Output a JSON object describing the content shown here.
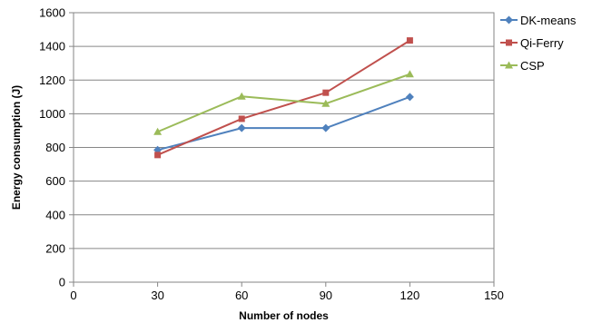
{
  "chart_data": {
    "type": "line",
    "xlabel": "Number of nodes",
    "ylabel": "Energy consumption  (J)",
    "xlim": [
      0,
      150
    ],
    "ylim": [
      0,
      1600
    ],
    "x_ticks": [
      0,
      30,
      60,
      90,
      120,
      150
    ],
    "y_ticks": [
      0,
      200,
      400,
      600,
      800,
      1000,
      1200,
      1400,
      1600
    ],
    "grid": "horizontal",
    "legend_position": "right",
    "x": [
      30,
      60,
      90,
      120
    ],
    "series": [
      {
        "name": "DK-means",
        "values": [
          785,
          915,
          915,
          1100
        ],
        "color": "#4f81bd",
        "marker": "diamond"
      },
      {
        "name": "Qi-Ferry",
        "values": [
          755,
          970,
          1125,
          1435
        ],
        "color": "#c0504d",
        "marker": "square"
      },
      {
        "name": "CSP",
        "values": [
          893,
          1103,
          1060,
          1235
        ],
        "color": "#9bbb59",
        "marker": "triangle"
      }
    ]
  }
}
